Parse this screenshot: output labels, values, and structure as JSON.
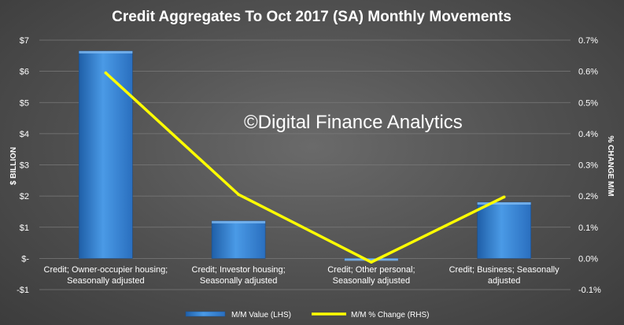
{
  "chart_data": {
    "type": "bar",
    "title": "Credit Aggregates To Oct 2017 (SA) Monthly Movements",
    "watermark": "©Digital Finance Analytics",
    "categories": [
      [
        "Credit; Owner-occupier housing;",
        "Seasonally adjusted"
      ],
      [
        "Credit; Investor housing;",
        "Seasonally adjusted"
      ],
      [
        "Credit; Other personal;",
        "Seasonally adjusted"
      ],
      [
        "Credit; Business; Seasonally",
        "adjusted"
      ]
    ],
    "series": [
      {
        "name": "M/M Value (LHS)",
        "type": "bar",
        "axis": "left",
        "values": [
          6.65,
          1.2,
          -0.05,
          1.8
        ],
        "color": "#3a8ad6"
      },
      {
        "name": "M/M % Change (RHS)",
        "type": "line",
        "axis": "right",
        "values": [
          0.595,
          0.205,
          -0.012,
          0.197
        ],
        "color": "#ffff00"
      }
    ],
    "ylabel": "$ BILLION",
    "y2label": "% CHANGE M/M",
    "ylim": [
      -1,
      7
    ],
    "y2lim": [
      -0.1,
      0.7
    ],
    "yticks": [
      "-$1",
      "$-",
      "$1",
      "$2",
      "$3",
      "$4",
      "$5",
      "$6",
      "$7"
    ],
    "y2ticks": [
      "-0.1%",
      "0.0%",
      "0.1%",
      "0.2%",
      "0.3%",
      "0.4%",
      "0.5%",
      "0.6%",
      "0.7%"
    ],
    "grid": true,
    "legend_position": "bottom",
    "background": "#555555"
  }
}
